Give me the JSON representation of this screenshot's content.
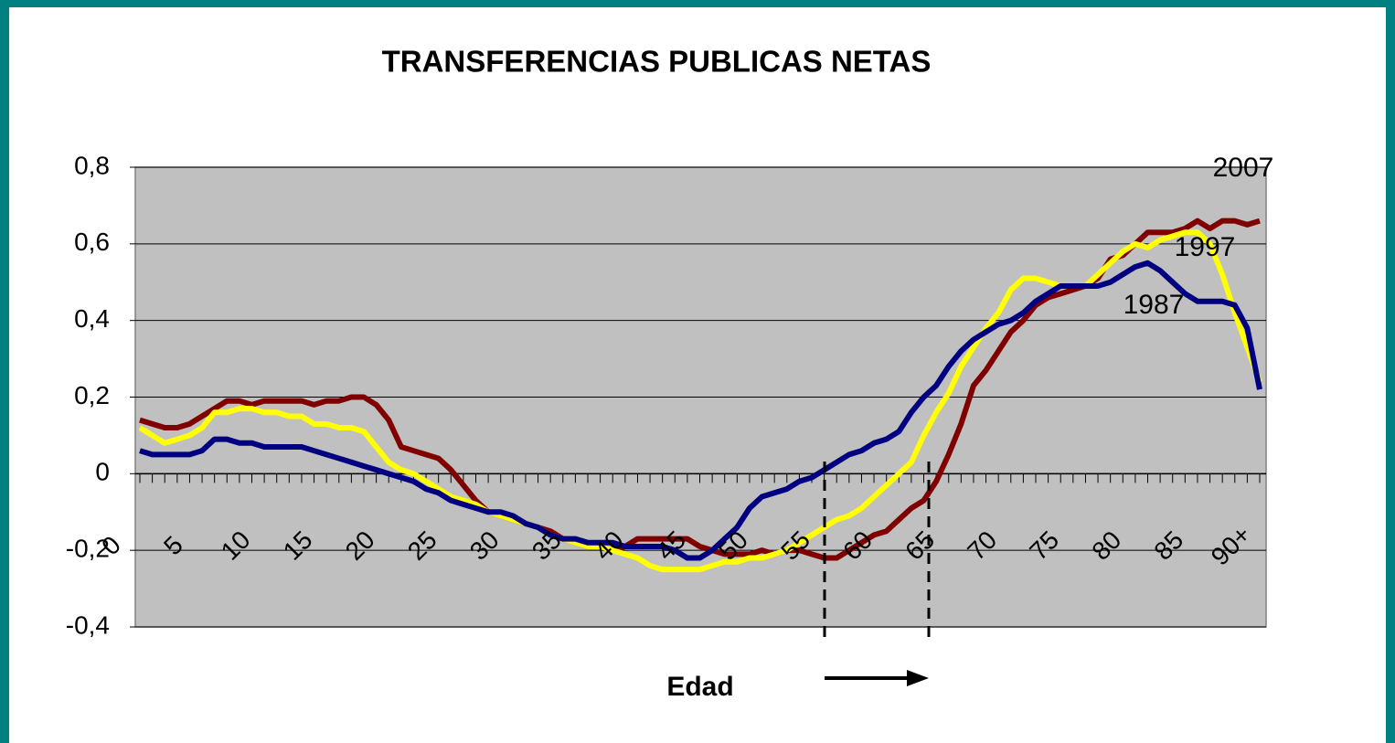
{
  "chart_data": {
    "type": "line",
    "title": "TRANSFERENCIAS PUBLICAS NETAS",
    "x_label": "Edad",
    "categories": [
      "0",
      null,
      null,
      null,
      null,
      "5",
      null,
      null,
      null,
      null,
      "10",
      null,
      null,
      null,
      null,
      "15",
      null,
      null,
      null,
      null,
      "20",
      null,
      null,
      null,
      null,
      "25",
      null,
      null,
      null,
      null,
      "30",
      null,
      null,
      null,
      null,
      "35",
      null,
      null,
      null,
      null,
      "40",
      null,
      null,
      null,
      null,
      "45",
      null,
      null,
      null,
      null,
      "50",
      null,
      null,
      null,
      null,
      "55",
      null,
      null,
      null,
      null,
      "60",
      null,
      null,
      null,
      null,
      "65",
      null,
      null,
      null,
      null,
      "70",
      null,
      null,
      null,
      null,
      "75",
      null,
      null,
      null,
      null,
      "80",
      null,
      null,
      null,
      null,
      "85",
      null,
      null,
      null,
      null,
      "90+"
    ],
    "series": [
      {
        "name": "2007",
        "color": "#800000",
        "values": [
          0.14,
          0.13,
          0.12,
          0.12,
          0.13,
          0.15,
          0.17,
          0.19,
          0.19,
          0.18,
          0.19,
          0.19,
          0.19,
          0.19,
          0.18,
          0.19,
          0.19,
          0.2,
          0.2,
          0.18,
          0.14,
          0.07,
          0.06,
          0.05,
          0.04,
          0.01,
          -0.03,
          -0.07,
          -0.1,
          -0.11,
          -0.12,
          -0.13,
          -0.14,
          -0.15,
          -0.17,
          -0.18,
          -0.19,
          -0.19,
          -0.2,
          -0.19,
          -0.17,
          -0.17,
          -0.17,
          -0.17,
          -0.17,
          -0.19,
          -0.2,
          -0.21,
          -0.21,
          -0.21,
          -0.2,
          -0.21,
          -0.2,
          -0.2,
          -0.21,
          -0.22,
          -0.22,
          -0.2,
          -0.18,
          -0.16,
          -0.15,
          -0.12,
          -0.09,
          -0.07,
          -0.02,
          0.05,
          0.13,
          0.23,
          0.27,
          0.32,
          0.37,
          0.4,
          0.44,
          0.46,
          0.47,
          0.48,
          0.49,
          0.51,
          0.56,
          0.57,
          0.6,
          0.63,
          0.63,
          0.63,
          0.64,
          0.66,
          0.64,
          0.66,
          0.66,
          0.65,
          0.66
        ]
      },
      {
        "name": "1997",
        "color": "#ffff00",
        "values": [
          0.12,
          0.1,
          0.08,
          0.09,
          0.1,
          0.12,
          0.16,
          0.16,
          0.17,
          0.17,
          0.16,
          0.16,
          0.15,
          0.15,
          0.13,
          0.13,
          0.12,
          0.12,
          0.11,
          0.07,
          0.03,
          0.01,
          0,
          -0.02,
          -0.04,
          -0.06,
          -0.07,
          -0.08,
          -0.1,
          -0.11,
          -0.12,
          -0.13,
          -0.14,
          -0.16,
          -0.17,
          -0.18,
          -0.19,
          -0.19,
          -0.2,
          -0.21,
          -0.22,
          -0.24,
          -0.25,
          -0.25,
          -0.25,
          -0.25,
          -0.24,
          -0.23,
          -0.23,
          -0.22,
          -0.22,
          -0.21,
          -0.2,
          -0.18,
          -0.16,
          -0.14,
          -0.12,
          -0.11,
          -0.09,
          -0.06,
          -0.03,
          0,
          0.03,
          0.1,
          0.16,
          0.21,
          0.28,
          0.33,
          0.38,
          0.42,
          0.48,
          0.51,
          0.51,
          0.5,
          0.49,
          0.49,
          0.49,
          0.52,
          0.55,
          0.58,
          0.6,
          0.59,
          0.61,
          0.62,
          0.63,
          0.63,
          0.6,
          0.52,
          0.42,
          0.33,
          0.24
        ]
      },
      {
        "name": "1987",
        "color": "#000080",
        "values": [
          0.06,
          0.05,
          0.05,
          0.05,
          0.05,
          0.06,
          0.09,
          0.09,
          0.08,
          0.08,
          0.07,
          0.07,
          0.07,
          0.07,
          0.06,
          0.05,
          0.04,
          0.03,
          0.02,
          0.01,
          0,
          -0.01,
          -0.02,
          -0.04,
          -0.05,
          -0.07,
          -0.08,
          -0.09,
          -0.1,
          -0.1,
          -0.11,
          -0.13,
          -0.14,
          -0.16,
          -0.17,
          -0.17,
          -0.18,
          -0.18,
          -0.18,
          -0.19,
          -0.19,
          -0.19,
          -0.19,
          -0.2,
          -0.22,
          -0.22,
          -0.2,
          -0.17,
          -0.14,
          -0.09,
          -0.06,
          -0.05,
          -0.04,
          -0.02,
          -0.01,
          0.01,
          0.03,
          0.05,
          0.06,
          0.08,
          0.09,
          0.11,
          0.16,
          0.2,
          0.23,
          0.28,
          0.32,
          0.35,
          0.37,
          0.39,
          0.4,
          0.42,
          0.45,
          0.47,
          0.49,
          0.49,
          0.49,
          0.49,
          0.5,
          0.52,
          0.54,
          0.55,
          0.53,
          0.5,
          0.47,
          0.45,
          0.45,
          0.45,
          0.44,
          0.38,
          0.22
        ]
      }
    ],
    "ylim": [
      -0.4,
      0.8
    ],
    "yticks": [
      {
        "value": -0.4,
        "label": "-0,4"
      },
      {
        "value": -0.2,
        "label": "-0,2"
      },
      0,
      {
        "value": 0.2,
        "label": "0,2"
      },
      {
        "value": 0.4,
        "label": "0,4"
      },
      {
        "value": 0.6,
        "label": "0,6"
      },
      {
        "value": 0.8,
        "label": "0,8"
      }
    ],
    "grid": true
  }
}
